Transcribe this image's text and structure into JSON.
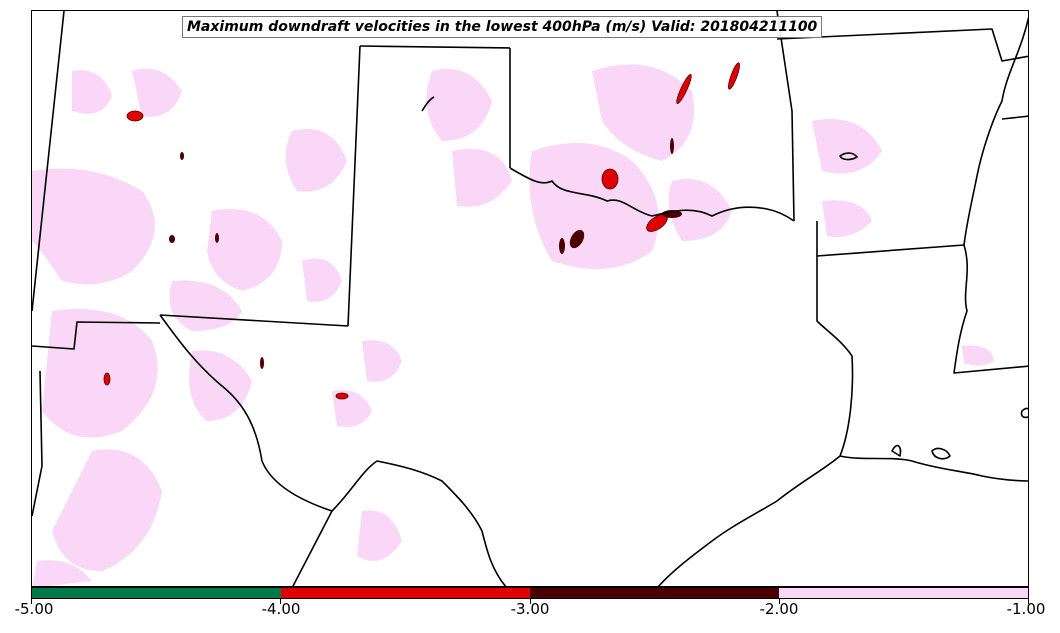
{
  "title": "Maximum downdraft velocities in the lowest 400hPa (m/s) Valid: 201804211100",
  "colorbar": {
    "segments": [
      {
        "from": -5.0,
        "to": -4.0,
        "color": "#007a4a"
      },
      {
        "from": -4.0,
        "to": -3.0,
        "color": "#e00000"
      },
      {
        "from": -3.0,
        "to": -2.0,
        "color": "#4a0000"
      },
      {
        "from": -2.0,
        "to": -1.0,
        "color": "#fad7f7"
      }
    ],
    "tick_labels": [
      "-5.00",
      "-4.00",
      "-3.00",
      "-2.00",
      "-1.00"
    ]
  },
  "map": {
    "boundary_color": "#000000",
    "colors": {
      "light_pink": "#fad7f7",
      "red": "#e00000",
      "dark_red": "#4a0000"
    },
    "features": [
      "state-borders",
      "coastline",
      "downdraft-contours"
    ]
  }
}
